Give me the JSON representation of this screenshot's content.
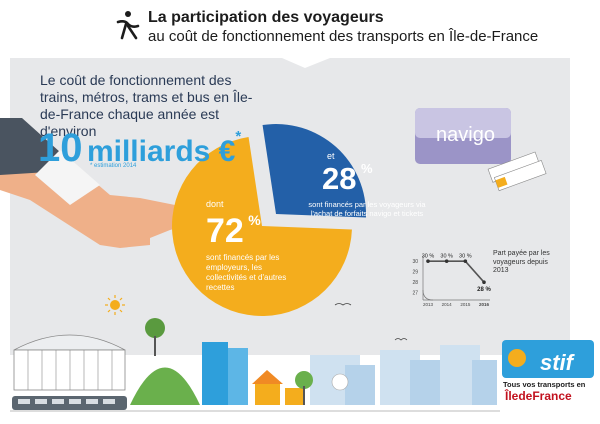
{
  "header": {
    "title": "La participation des voyageurs",
    "subtitle": "au coût de fonctionnement des transports en Île-de-France"
  },
  "intro": {
    "text": "Le coût de fonctionnement des trains, métros, trams et bus en Île-de-France chaque année est d'environ",
    "amount": "10",
    "unit": "milliards €",
    "asterisk": "*",
    "footnote": "* estimation 2014"
  },
  "pie": {
    "share_a": {
      "pre": "dont",
      "value_text": "72",
      "pct": "%",
      "text": "sont financés par les employeurs, les collectivités et d'autres recettes"
    },
    "share_b": {
      "pre": "et",
      "value_text": "28",
      "pct": "%",
      "text": "sont financés par les voyageurs via l'achat de forfaits navigo et tickets"
    }
  },
  "navigo_card": {
    "label": "navigo"
  },
  "mini_chart": {
    "caption": "Part payée par les voyageurs depuis 2013"
  },
  "brand": {
    "logo": "stif",
    "tagline": "Tous vos transports en",
    "region": "ÎledeFrance"
  },
  "colors": {
    "yellow": "#f4ad1d",
    "blue": "#2360a8",
    "light_blue": "#2e9fdb",
    "background": "#e7e8ea"
  },
  "chart_data": [
    {
      "type": "pie",
      "title": "La participation des voyageurs au coût de fonctionnement des transports en Île-de-France",
      "total_label": "10 milliards €",
      "slices": [
        {
          "label": "sont financés par les employeurs, les collectivités et d'autres recettes",
          "value": 72,
          "color": "#f4ad1d"
        },
        {
          "label": "sont financés par les voyageurs via l'achat de forfaits navigo et tickets",
          "value": 28,
          "color": "#2360a8"
        }
      ]
    },
    {
      "type": "line",
      "title": "Part payée par les voyageurs depuis 2013",
      "x": [
        "2013",
        "2014",
        "2015",
        "2016"
      ],
      "y": [
        30,
        30,
        30,
        28
      ],
      "value_labels": [
        "30 %",
        "30 %",
        "30 %",
        "28 %"
      ],
      "y_ticks": [
        27,
        28,
        29,
        30
      ],
      "ylim": [
        26.5,
        30.3
      ]
    }
  ]
}
